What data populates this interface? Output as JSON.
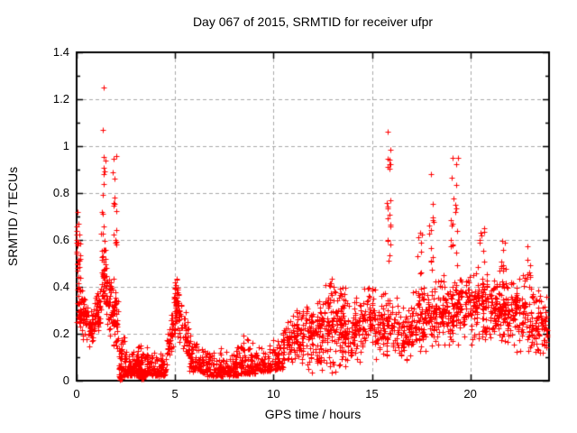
{
  "page": {
    "background": "#ffffff"
  },
  "chart_data": {
    "type": "scatter",
    "title": "Day 067 of 2015, SRMTID for receiver ufpr",
    "xlabel": "GPS time / hours",
    "ylabel": "SRMTID / TECUs",
    "xlim": [
      0,
      24
    ],
    "ylim": [
      0,
      1.4
    ],
    "xticks": [
      0,
      5,
      10,
      15,
      20
    ],
    "yticks": [
      "0",
      "0.2",
      "0.4",
      "0.6",
      "0.8",
      "1",
      "1.2",
      "1.4"
    ],
    "y_minor_step": 0.1,
    "grid": {
      "show": true,
      "style": "dashed",
      "color": "#a8a8a8",
      "x_at": [
        5,
        10,
        15,
        20
      ],
      "y_at": [
        0.2,
        0.4,
        0.6,
        0.8,
        1.0,
        1.2
      ]
    },
    "marker": {
      "symbol": "+",
      "color": "#ff0000",
      "size": 7
    },
    "border_color": "#000000",
    "seed": 20150067,
    "bands_note": "dense scatter approximated as bands: [x_start,x_end,ylow_start,ylow_end,yhigh_start,yhigh_end,count,bias(0=uniform,1=mid,2=low)]",
    "bands": [
      [
        0.0,
        0.18,
        0.22,
        0.25,
        0.74,
        0.6,
        40,
        0
      ],
      [
        0.1,
        0.5,
        0.16,
        0.15,
        0.55,
        0.38,
        55,
        1
      ],
      [
        0.5,
        0.88,
        0.12,
        0.15,
        0.36,
        0.3,
        45,
        1
      ],
      [
        0.88,
        1.22,
        0.16,
        0.2,
        0.42,
        0.44,
        45,
        1
      ],
      [
        1.25,
        1.52,
        0.2,
        0.24,
        0.66,
        0.58,
        45,
        1
      ],
      [
        1.52,
        1.82,
        0.13,
        0.11,
        0.56,
        0.48,
        42,
        1
      ],
      [
        1.82,
        2.12,
        0.09,
        0.06,
        0.48,
        0.38,
        45,
        1
      ],
      [
        2.12,
        2.48,
        0.02,
        0.02,
        0.34,
        0.2,
        55,
        2
      ],
      [
        2.48,
        3.15,
        0.02,
        0.02,
        0.15,
        0.16,
        90,
        2
      ],
      [
        3.15,
        3.72,
        0.02,
        0.03,
        0.19,
        0.16,
        80,
        2
      ],
      [
        3.72,
        4.58,
        0.02,
        0.02,
        0.13,
        0.12,
        90,
        2
      ],
      [
        4.58,
        4.92,
        0.04,
        0.12,
        0.2,
        0.36,
        45,
        1
      ],
      [
        4.92,
        5.18,
        0.14,
        0.16,
        0.48,
        0.44,
        55,
        1
      ],
      [
        5.18,
        5.72,
        0.1,
        0.06,
        0.42,
        0.24,
        55,
        1
      ],
      [
        5.72,
        6.52,
        0.04,
        0.03,
        0.22,
        0.14,
        80,
        2
      ],
      [
        6.52,
        8.22,
        0.02,
        0.02,
        0.13,
        0.15,
        170,
        2
      ],
      [
        8.22,
        8.92,
        0.03,
        0.03,
        0.24,
        0.18,
        70,
        2
      ],
      [
        8.92,
        9.62,
        0.03,
        0.04,
        0.16,
        0.16,
        65,
        2
      ],
      [
        9.62,
        10.48,
        0.04,
        0.05,
        0.23,
        0.25,
        80,
        2
      ],
      [
        10.48,
        11.08,
        0.05,
        0.06,
        0.27,
        0.29,
        62,
        1
      ],
      [
        11.08,
        11.78,
        0.06,
        0.05,
        0.33,
        0.37,
        70,
        1
      ],
      [
        11.78,
        12.48,
        0.01,
        0.01,
        0.36,
        0.39,
        85,
        1
      ],
      [
        12.48,
        13.18,
        0.04,
        0.02,
        0.42,
        0.45,
        85,
        1
      ],
      [
        13.18,
        13.68,
        0.0,
        0.01,
        0.45,
        0.42,
        75,
        1
      ],
      [
        13.68,
        14.48,
        0.04,
        0.06,
        0.37,
        0.39,
        75,
        1
      ],
      [
        14.48,
        15.18,
        0.08,
        0.1,
        0.44,
        0.42,
        72,
        1
      ],
      [
        15.18,
        16.22,
        0.08,
        0.1,
        0.38,
        0.37,
        95,
        1
      ],
      [
        16.22,
        17.28,
        0.07,
        0.09,
        0.37,
        0.39,
        95,
        1
      ],
      [
        17.28,
        17.82,
        0.1,
        0.1,
        0.44,
        0.42,
        58,
        1
      ],
      [
        17.82,
        18.28,
        0.1,
        0.12,
        0.43,
        0.45,
        52,
        1
      ],
      [
        18.28,
        18.98,
        0.12,
        0.14,
        0.46,
        0.44,
        68,
        1
      ],
      [
        18.98,
        19.48,
        0.15,
        0.15,
        0.48,
        0.46,
        58,
        1
      ],
      [
        19.48,
        20.38,
        0.12,
        0.14,
        0.46,
        0.48,
        88,
        1
      ],
      [
        20.38,
        20.88,
        0.14,
        0.15,
        0.52,
        0.48,
        58,
        1
      ],
      [
        20.88,
        21.48,
        0.15,
        0.14,
        0.46,
        0.44,
        62,
        1
      ],
      [
        21.48,
        21.88,
        0.16,
        0.15,
        0.55,
        0.5,
        52,
        1
      ],
      [
        21.88,
        22.68,
        0.1,
        0.1,
        0.46,
        0.44,
        82,
        1
      ],
      [
        22.68,
        23.38,
        0.08,
        0.08,
        0.5,
        0.44,
        72,
        1
      ],
      [
        23.38,
        23.92,
        0.05,
        0.06,
        0.45,
        0.38,
        58,
        1
      ]
    ],
    "spikes_note": "tall narrow columns: [x_start,x_end,y_min,y_max,count]",
    "spikes": [
      [
        1.3,
        1.46,
        0.45,
        0.96,
        16
      ],
      [
        1.84,
        2.06,
        0.58,
        0.99,
        15
      ],
      [
        15.7,
        15.96,
        0.5,
        1.03,
        20
      ],
      [
        17.3,
        17.56,
        0.44,
        0.66,
        8
      ],
      [
        17.9,
        18.16,
        0.44,
        0.88,
        12
      ],
      [
        19.0,
        19.36,
        0.46,
        0.96,
        18
      ],
      [
        20.45,
        20.76,
        0.48,
        0.72,
        8
      ],
      [
        21.5,
        21.76,
        0.44,
        0.6,
        7
      ],
      [
        22.8,
        23.06,
        0.44,
        0.6,
        6
      ]
    ],
    "outlier_points": [
      [
        1.37,
        1.25
      ],
      [
        1.34,
        1.07
      ],
      [
        1.3,
        0.72
      ],
      [
        0.06,
        0.72
      ],
      [
        15.82,
        1.06
      ],
      [
        19.1,
        0.95
      ],
      [
        18.0,
        0.88
      ]
    ],
    "dense_blobs_note": "solid-looking clumps on the x-axis",
    "dense_blobs": [
      [
        2.25,
        0.012
      ],
      [
        3.35,
        0.012
      ]
    ]
  }
}
